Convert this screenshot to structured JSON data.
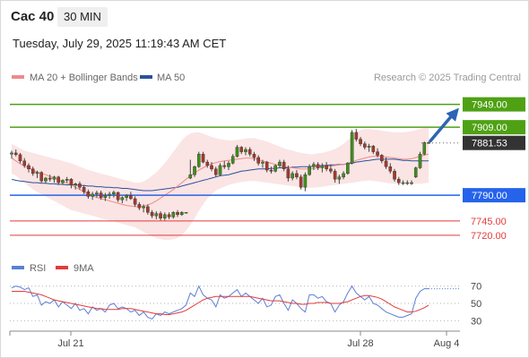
{
  "header": {
    "symbol": "Cac 40",
    "timeframe": "30 MIN"
  },
  "timestamp": "Tuesday, July 29, 2025 11:19:43 AM CET",
  "legend": {
    "ma20_label": "MA 20 + Bollinger Bands",
    "ma50_label": "MA 50",
    "credit": "Research © 2025 Trading Central"
  },
  "rsi_legend": {
    "rsi_label": "RSI",
    "ma_label": "9MA"
  },
  "colors": {
    "ma20": "#ef8a8a",
    "ma50": "#28529e",
    "band": "#fbe1e1",
    "green": "#4fa114",
    "blue": "#2563eb",
    "red": "#e43a3a",
    "rsi": "#5b7fd6",
    "price_tag": "#333333",
    "arrow": "#2e64b4"
  },
  "chart_data": [
    {
      "type": "candlestick",
      "title": "Cac 40",
      "timeframe": "30 MIN",
      "x_tick_labels": [
        "Jul 21",
        "Jul 28",
        "Aug 4"
      ],
      "y_range": [
        7690,
        7975
      ],
      "overlays": [
        "MA 20 + Bollinger Bands",
        "MA 50"
      ],
      "ohlc": [
        [
          7862,
          7868,
          7854,
          7864
        ],
        [
          7864,
          7870,
          7858,
          7861
        ],
        [
          7861,
          7864,
          7846,
          7850
        ],
        [
          7850,
          7855,
          7838,
          7842
        ],
        [
          7842,
          7846,
          7830,
          7836
        ],
        [
          7836,
          7840,
          7824,
          7828
        ],
        [
          7828,
          7833,
          7820,
          7830
        ],
        [
          7830,
          7832,
          7812,
          7815
        ],
        [
          7815,
          7822,
          7810,
          7820
        ],
        [
          7820,
          7826,
          7814,
          7818
        ],
        [
          7818,
          7824,
          7812,
          7822
        ],
        [
          7822,
          7824,
          7808,
          7812
        ],
        [
          7812,
          7818,
          7808,
          7816
        ],
        [
          7816,
          7822,
          7812,
          7818
        ],
        [
          7818,
          7820,
          7802,
          7808
        ],
        [
          7808,
          7812,
          7800,
          7810
        ],
        [
          7810,
          7814,
          7800,
          7804
        ],
        [
          7804,
          7808,
          7792,
          7796
        ],
        [
          7796,
          7800,
          7784,
          7788
        ],
        [
          7788,
          7796,
          7782,
          7792
        ],
        [
          7792,
          7798,
          7786,
          7794
        ],
        [
          7794,
          7798,
          7782,
          7786
        ],
        [
          7786,
          7794,
          7780,
          7790
        ],
        [
          7790,
          7796,
          7784,
          7792
        ],
        [
          7792,
          7798,
          7786,
          7795
        ],
        [
          7795,
          7796,
          7778,
          7782
        ],
        [
          7782,
          7788,
          7776,
          7786
        ],
        [
          7786,
          7792,
          7780,
          7790
        ],
        [
          7790,
          7796,
          7782,
          7784
        ],
        [
          7784,
          7788,
          7770,
          7774
        ],
        [
          7774,
          7778,
          7764,
          7768
        ],
        [
          7768,
          7774,
          7760,
          7770
        ],
        [
          7770,
          7774,
          7756,
          7760
        ],
        [
          7760,
          7764,
          7750,
          7754
        ],
        [
          7754,
          7762,
          7748,
          7758
        ],
        [
          7758,
          7762,
          7746,
          7750
        ],
        [
          7750,
          7760,
          7746,
          7756
        ],
        [
          7756,
          7760,
          7748,
          7752
        ],
        [
          7752,
          7762,
          7749,
          7760
        ],
        [
          7760,
          7764,
          7752,
          7756
        ],
        [
          7756,
          7762,
          7754,
          7760
        ],
        [
          7760,
          7760,
          7758,
          7760
        ],
        [
          7820,
          7852,
          7818,
          7826
        ],
        [
          7826,
          7842,
          7822,
          7840
        ],
        [
          7840,
          7866,
          7838,
          7862
        ],
        [
          7862,
          7866,
          7846,
          7848
        ],
        [
          7848,
          7852,
          7838,
          7842
        ],
        [
          7842,
          7848,
          7832,
          7836
        ],
        [
          7836,
          7840,
          7822,
          7826
        ],
        [
          7826,
          7846,
          7824,
          7842
        ],
        [
          7842,
          7850,
          7836,
          7840
        ],
        [
          7840,
          7850,
          7834,
          7846
        ],
        [
          7846,
          7862,
          7844,
          7858
        ],
        [
          7858,
          7878,
          7856,
          7874
        ],
        [
          7874,
          7876,
          7862,
          7866
        ],
        [
          7866,
          7874,
          7860,
          7870
        ],
        [
          7870,
          7874,
          7858,
          7862
        ],
        [
          7862,
          7866,
          7850,
          7856
        ],
        [
          7856,
          7860,
          7842,
          7846
        ],
        [
          7846,
          7852,
          7838,
          7848
        ],
        [
          7848,
          7850,
          7830,
          7834
        ],
        [
          7834,
          7840,
          7828,
          7832
        ],
        [
          7832,
          7844,
          7830,
          7842
        ],
        [
          7842,
          7852,
          7838,
          7848
        ],
        [
          7848,
          7852,
          7832,
          7836
        ],
        [
          7836,
          7842,
          7814,
          7820
        ],
        [
          7820,
          7832,
          7816,
          7828
        ],
        [
          7828,
          7834,
          7818,
          7822
        ],
        [
          7822,
          7826,
          7800,
          7804
        ],
        [
          7804,
          7830,
          7797,
          7826
        ],
        [
          7826,
          7844,
          7824,
          7840
        ],
        [
          7840,
          7848,
          7834,
          7844
        ],
        [
          7844,
          7848,
          7834,
          7838
        ],
        [
          7838,
          7846,
          7830,
          7842
        ],
        [
          7842,
          7848,
          7832,
          7836
        ],
        [
          7836,
          7844,
          7828,
          7832
        ],
        [
          7832,
          7836,
          7812,
          7818
        ],
        [
          7818,
          7826,
          7810,
          7822
        ],
        [
          7822,
          7832,
          7818,
          7828
        ],
        [
          7828,
          7848,
          7826,
          7846
        ],
        [
          7846,
          7904,
          7844,
          7900
        ],
        [
          7900,
          7906,
          7884,
          7888
        ],
        [
          7888,
          7892,
          7876,
          7880
        ],
        [
          7880,
          7884,
          7870,
          7874
        ],
        [
          7874,
          7880,
          7866,
          7876
        ],
        [
          7876,
          7878,
          7862,
          7866
        ],
        [
          7866,
          7872,
          7856,
          7860
        ],
        [
          7860,
          7862,
          7846,
          7850
        ],
        [
          7850,
          7856,
          7836,
          7840
        ],
        [
          7840,
          7846,
          7828,
          7832
        ],
        [
          7832,
          7836,
          7814,
          7818
        ],
        [
          7818,
          7822,
          7808,
          7812
        ],
        [
          7812,
          7816,
          7808,
          7812
        ],
        [
          7812,
          7816,
          7808,
          7812
        ],
        [
          7812,
          7816,
          7808,
          7812
        ],
        [
          7822,
          7840,
          7820,
          7838
        ],
        [
          7838,
          7866,
          7836,
          7862
        ],
        [
          7862,
          7884,
          7860,
          7882
        ],
        [
          7882,
          7884,
          7880,
          7882
        ]
      ],
      "ma20": [
        7855,
        7850,
        7845,
        7841,
        7838,
        7834,
        7830,
        7828,
        7826,
        7823,
        7820,
        7817,
        7814,
        7811,
        7808,
        7804,
        7800,
        7796,
        7792,
        7789,
        7786,
        7784,
        7782,
        7780,
        7778,
        7776,
        7774,
        7772,
        7771,
        7770,
        7770,
        7771,
        7773,
        7776,
        7780,
        7785,
        7790,
        7795,
        7800,
        7806,
        7812,
        7818,
        7824,
        7829,
        7834,
        7838,
        7842,
        7845,
        7847,
        7849,
        7850,
        7851,
        7852,
        7853,
        7854,
        7855,
        7855,
        7854,
        7852,
        7850,
        7848,
        7846,
        7844,
        7842,
        7840,
        7839,
        7838,
        7837,
        7836,
        7836,
        7836,
        7837,
        7838,
        7839,
        7840,
        7841,
        7842,
        7843,
        7844,
        7846,
        7848,
        7851,
        7853,
        7855,
        7857,
        7858,
        7859,
        7858,
        7857,
        7856,
        7855,
        7854,
        7853,
        7853,
        7854,
        7856,
        7858,
        7860,
        7862
      ],
      "ma50": [
        7818,
        7816,
        7815,
        7814,
        7813,
        7812,
        7812,
        7811,
        7811,
        7810,
        7810,
        7809,
        7809,
        7808,
        7808,
        7808,
        7807,
        7807,
        7806,
        7806,
        7805,
        7805,
        7804,
        7804,
        7803,
        7803,
        7802,
        7802,
        7801,
        7800,
        7799,
        7798,
        7798,
        7798,
        7799,
        7800,
        7801,
        7802,
        7803,
        7804,
        7806,
        7808,
        7810,
        7812,
        7814,
        7816,
        7818,
        7820,
        7822,
        7824,
        7825,
        7826,
        7828,
        7830,
        7832,
        7833,
        7834,
        7835,
        7836,
        7836,
        7836,
        7837,
        7837,
        7838,
        7838,
        7838,
        7839,
        7839,
        7840,
        7840,
        7840,
        7841,
        7841,
        7842,
        7842,
        7843,
        7843,
        7844,
        7844,
        7845,
        7846,
        7848,
        7849,
        7850,
        7851,
        7852,
        7853,
        7853,
        7853,
        7853,
        7853,
        7852,
        7851,
        7851,
        7850,
        7850,
        7850,
        7850,
        7850
      ],
      "bb_upper": [
        7880,
        7876,
        7872,
        7868,
        7866,
        7864,
        7862,
        7860,
        7858,
        7856,
        7854,
        7852,
        7850,
        7848,
        7846,
        7843,
        7840,
        7837,
        7834,
        7832,
        7830,
        7828,
        7826,
        7824,
        7822,
        7820,
        7818,
        7816,
        7814,
        7812,
        7812,
        7814,
        7818,
        7824,
        7830,
        7838,
        7846,
        7856,
        7866,
        7876,
        7886,
        7893,
        7898,
        7900,
        7900,
        7898,
        7895,
        7892,
        7890,
        7888,
        7887,
        7886,
        7886,
        7887,
        7888,
        7889,
        7890,
        7890,
        7888,
        7886,
        7884,
        7881,
        7878,
        7875,
        7872,
        7870,
        7868,
        7866,
        7864,
        7863,
        7862,
        7862,
        7863,
        7864,
        7866,
        7868,
        7871,
        7875,
        7880,
        7886,
        7893,
        7899,
        7904,
        7906,
        7906,
        7905,
        7904,
        7903,
        7902,
        7901,
        7900,
        7900,
        7900,
        7901,
        7902,
        7904,
        7906,
        7908,
        7910
      ],
      "bb_lower": [
        7828,
        7824,
        7818,
        7812,
        7806,
        7800,
        7796,
        7792,
        7788,
        7784,
        7780,
        7776,
        7772,
        7768,
        7764,
        7762,
        7760,
        7758,
        7756,
        7754,
        7752,
        7750,
        7748,
        7746,
        7744,
        7742,
        7740,
        7738,
        7736,
        7734,
        7730,
        7726,
        7722,
        7718,
        7715,
        7713,
        7712,
        7712,
        7713,
        7715,
        7720,
        7728,
        7738,
        7750,
        7762,
        7774,
        7784,
        7792,
        7798,
        7802,
        7805,
        7808,
        7810,
        7812,
        7813,
        7814,
        7815,
        7815,
        7814,
        7813,
        7812,
        7811,
        7810,
        7809,
        7808,
        7807,
        7806,
        7805,
        7804,
        7803,
        7803,
        7803,
        7804,
        7805,
        7806,
        7807,
        7808,
        7809,
        7810,
        7811,
        7812,
        7813,
        7814,
        7815,
        7816,
        7815,
        7814,
        7813,
        7812,
        7811,
        7810,
        7810,
        7810,
        7810,
        7810,
        7810,
        7810,
        7811,
        7812
      ],
      "horizontal_levels": [
        {
          "value": 7949.0,
          "label": "7949.00",
          "color": "green",
          "style": "solid"
        },
        {
          "value": 7909.0,
          "label": "7909.00",
          "color": "green",
          "style": "solid"
        },
        {
          "value": 7881.53,
          "label": "7881.53",
          "color": "price_tag",
          "style": "dotted",
          "current_price": true
        },
        {
          "value": 7790.0,
          "label": "7790.00",
          "color": "blue",
          "style": "solid"
        },
        {
          "value": 7745.0,
          "label": "7745.00",
          "color": "red",
          "style": "solid"
        },
        {
          "value": 7720.0,
          "label": "7720.00",
          "color": "red",
          "style": "solid"
        }
      ],
      "projection_arrow": {
        "from": 7885,
        "to": 7945,
        "direction": "up"
      }
    },
    {
      "type": "line",
      "title": "RSI",
      "y_ticks": [
        70,
        50,
        30
      ],
      "y_range": [
        22,
        78
      ],
      "series": [
        {
          "name": "RSI",
          "color": "rsi",
          "values": [
            68,
            70,
            69,
            66,
            68,
            58,
            60,
            48,
            52,
            50,
            54,
            46,
            52,
            48,
            44,
            50,
            42,
            44,
            38,
            46,
            42,
            44,
            40,
            48,
            50,
            44,
            46,
            44,
            40,
            42,
            36,
            40,
            34,
            32,
            38,
            36,
            40,
            38,
            40,
            42,
            44,
            48,
            62,
            58,
            70,
            60,
            56,
            54,
            46,
            60,
            56,
            58,
            62,
            66,
            58,
            62,
            58,
            54,
            50,
            56,
            46,
            48,
            58,
            60,
            50,
            42,
            54,
            50,
            44,
            40,
            60,
            60,
            56,
            58,
            52,
            50,
            40,
            48,
            52,
            62,
            70,
            62,
            58,
            54,
            58,
            50,
            48,
            44,
            40,
            38,
            36,
            34,
            34,
            36,
            38,
            56,
            64,
            67,
            67
          ]
        },
        {
          "name": "9MA",
          "color": "red",
          "values": [
            64,
            64,
            64,
            64,
            63,
            62,
            61,
            60,
            58,
            56,
            54,
            53,
            52,
            51,
            50,
            49,
            48,
            47,
            46,
            45,
            44,
            44,
            43,
            43,
            43,
            43,
            44,
            44,
            44,
            43,
            42,
            41,
            40,
            39,
            38,
            38,
            37,
            37,
            38,
            39,
            40,
            42,
            45,
            48,
            51,
            54,
            56,
            57,
            58,
            58,
            58,
            58,
            58,
            58,
            58,
            58,
            58,
            57,
            56,
            55,
            54,
            53,
            53,
            53,
            52,
            51,
            50,
            50,
            49,
            49,
            50,
            50,
            51,
            51,
            51,
            50,
            50,
            50,
            51,
            52,
            54,
            56,
            58,
            59,
            59,
            58,
            57,
            55,
            52,
            49,
            46,
            44,
            42,
            40,
            40,
            41,
            43,
            45,
            48
          ]
        }
      ]
    }
  ]
}
